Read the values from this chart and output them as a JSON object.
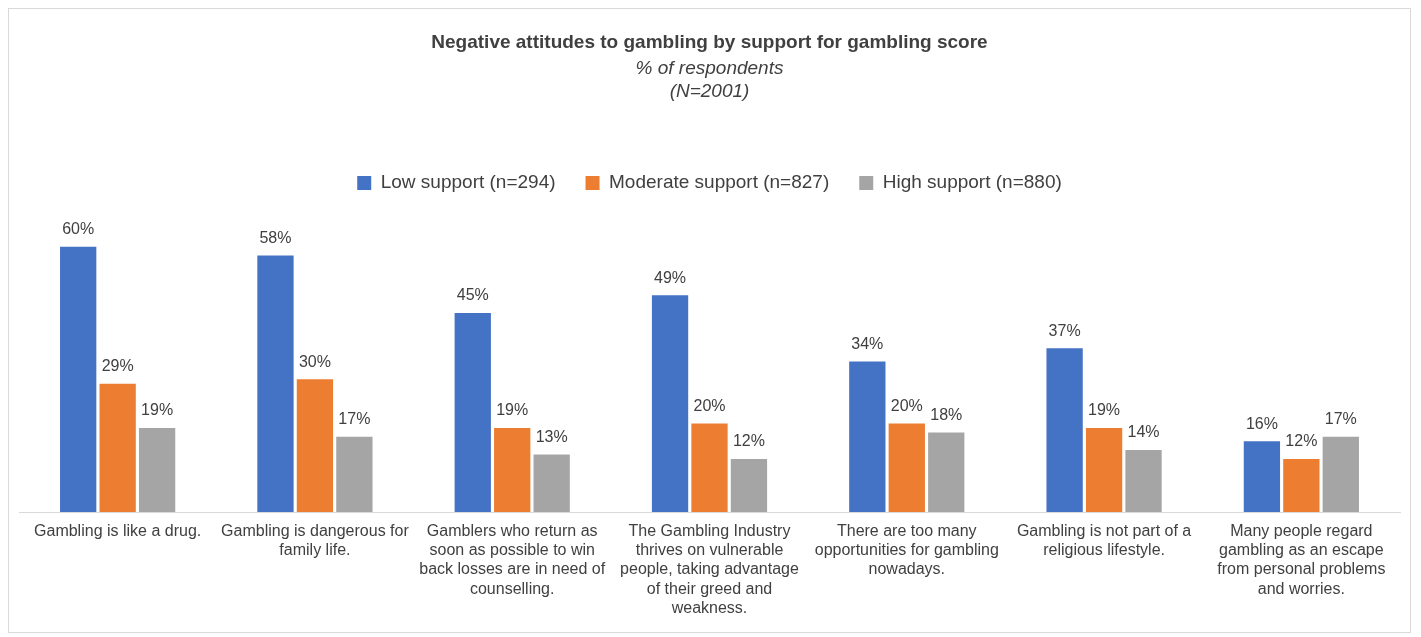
{
  "chart_data": {
    "type": "bar",
    "title": "Negative attitudes to gambling by support for gambling score",
    "subtitle": "% of respondents\n(N=2001)",
    "categories": [
      "Gambling is like a drug.",
      "Gambling is dangerous for family life.",
      "Gamblers who return as soon as possible to win back losses are in need of counselling.",
      "The Gambling Industry thrives on vulnerable people, taking advantage of their greed and weakness.",
      "There are too many opportunities for gambling nowadays.",
      "Gambling is not part of a religious lifestyle.",
      "Many people regard gambling as an escape from personal problems and worries."
    ],
    "series": [
      {
        "name": "Low support (n=294)",
        "color": "#4472c4",
        "values": [
          60,
          58,
          45,
          49,
          34,
          37,
          16
        ],
        "value_labels": [
          "60%",
          "58%",
          "45%",
          "49%",
          "34%",
          "37%",
          "16%"
        ]
      },
      {
        "name": "Moderate support (n=827)",
        "color": "#ed7d31",
        "values": [
          29,
          30,
          19,
          20,
          20,
          19,
          12
        ],
        "value_labels": [
          "29%",
          "30%",
          "19%",
          "20%",
          "20%",
          "19%",
          "12%"
        ]
      },
      {
        "name": "High support (n=880)",
        "color": "#a5a5a5",
        "values": [
          19,
          17,
          13,
          12,
          18,
          14,
          17
        ],
        "value_labels": [
          "19%",
          "17%",
          "13%",
          "12%",
          "18%",
          "14%",
          "17%"
        ]
      }
    ],
    "legend": "top",
    "grid": false,
    "tick_labels": "x"
  }
}
